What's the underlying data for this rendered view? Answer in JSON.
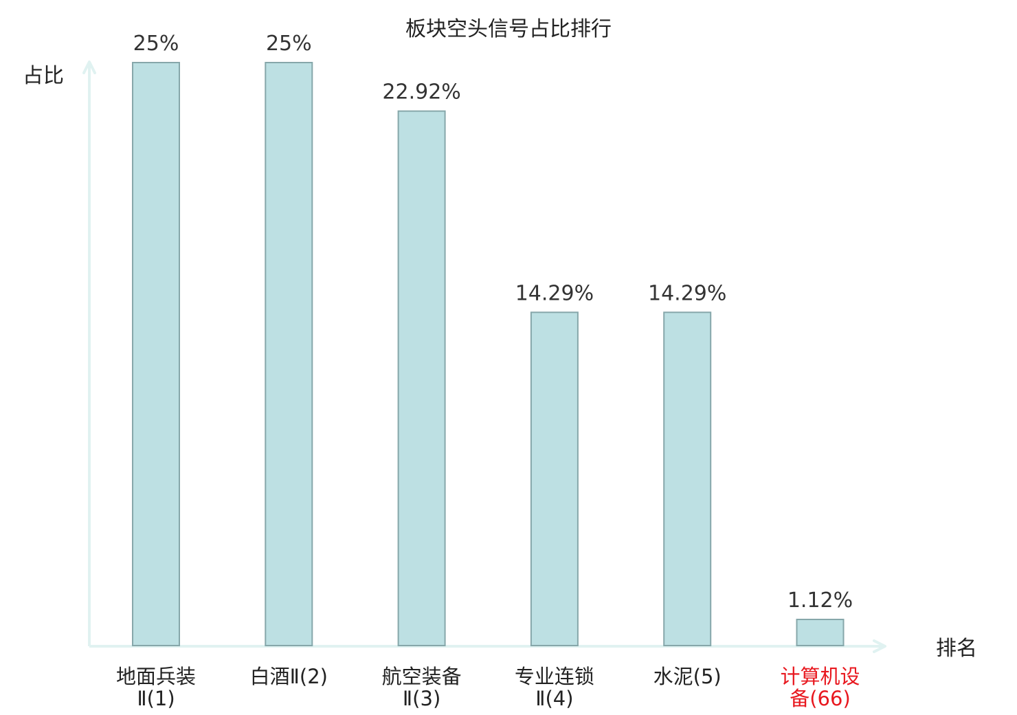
{
  "chart_data": {
    "type": "bar",
    "title": "板块空头信号占比排行",
    "ylabel": "占比",
    "xlabel": "排名",
    "categories": [
      [
        "地面兵装",
        "Ⅱ(1)"
      ],
      [
        "白酒Ⅱ(2)"
      ],
      [
        "航空装备",
        "Ⅱ(3)"
      ],
      [
        "专业连锁",
        "Ⅱ(4)"
      ],
      [
        "水泥(5)"
      ],
      [
        "计算机设",
        "备(66)"
      ]
    ],
    "values": [
      25,
      25,
      22.92,
      14.29,
      14.29,
      1.12
    ],
    "value_labels": [
      "25%",
      "25%",
      "22.92%",
      "14.29%",
      "14.29%",
      "1.12%"
    ],
    "highlight_index": 5,
    "ylim": [
      0,
      25
    ],
    "grid": false,
    "legend": "none"
  },
  "colors": {
    "bar_fill": "#bde0e3",
    "bar_stroke": "#86a7aa",
    "axis": "#e0f2f1",
    "text": "#222222",
    "value_text": "#333333",
    "highlight": "#e8181f"
  }
}
